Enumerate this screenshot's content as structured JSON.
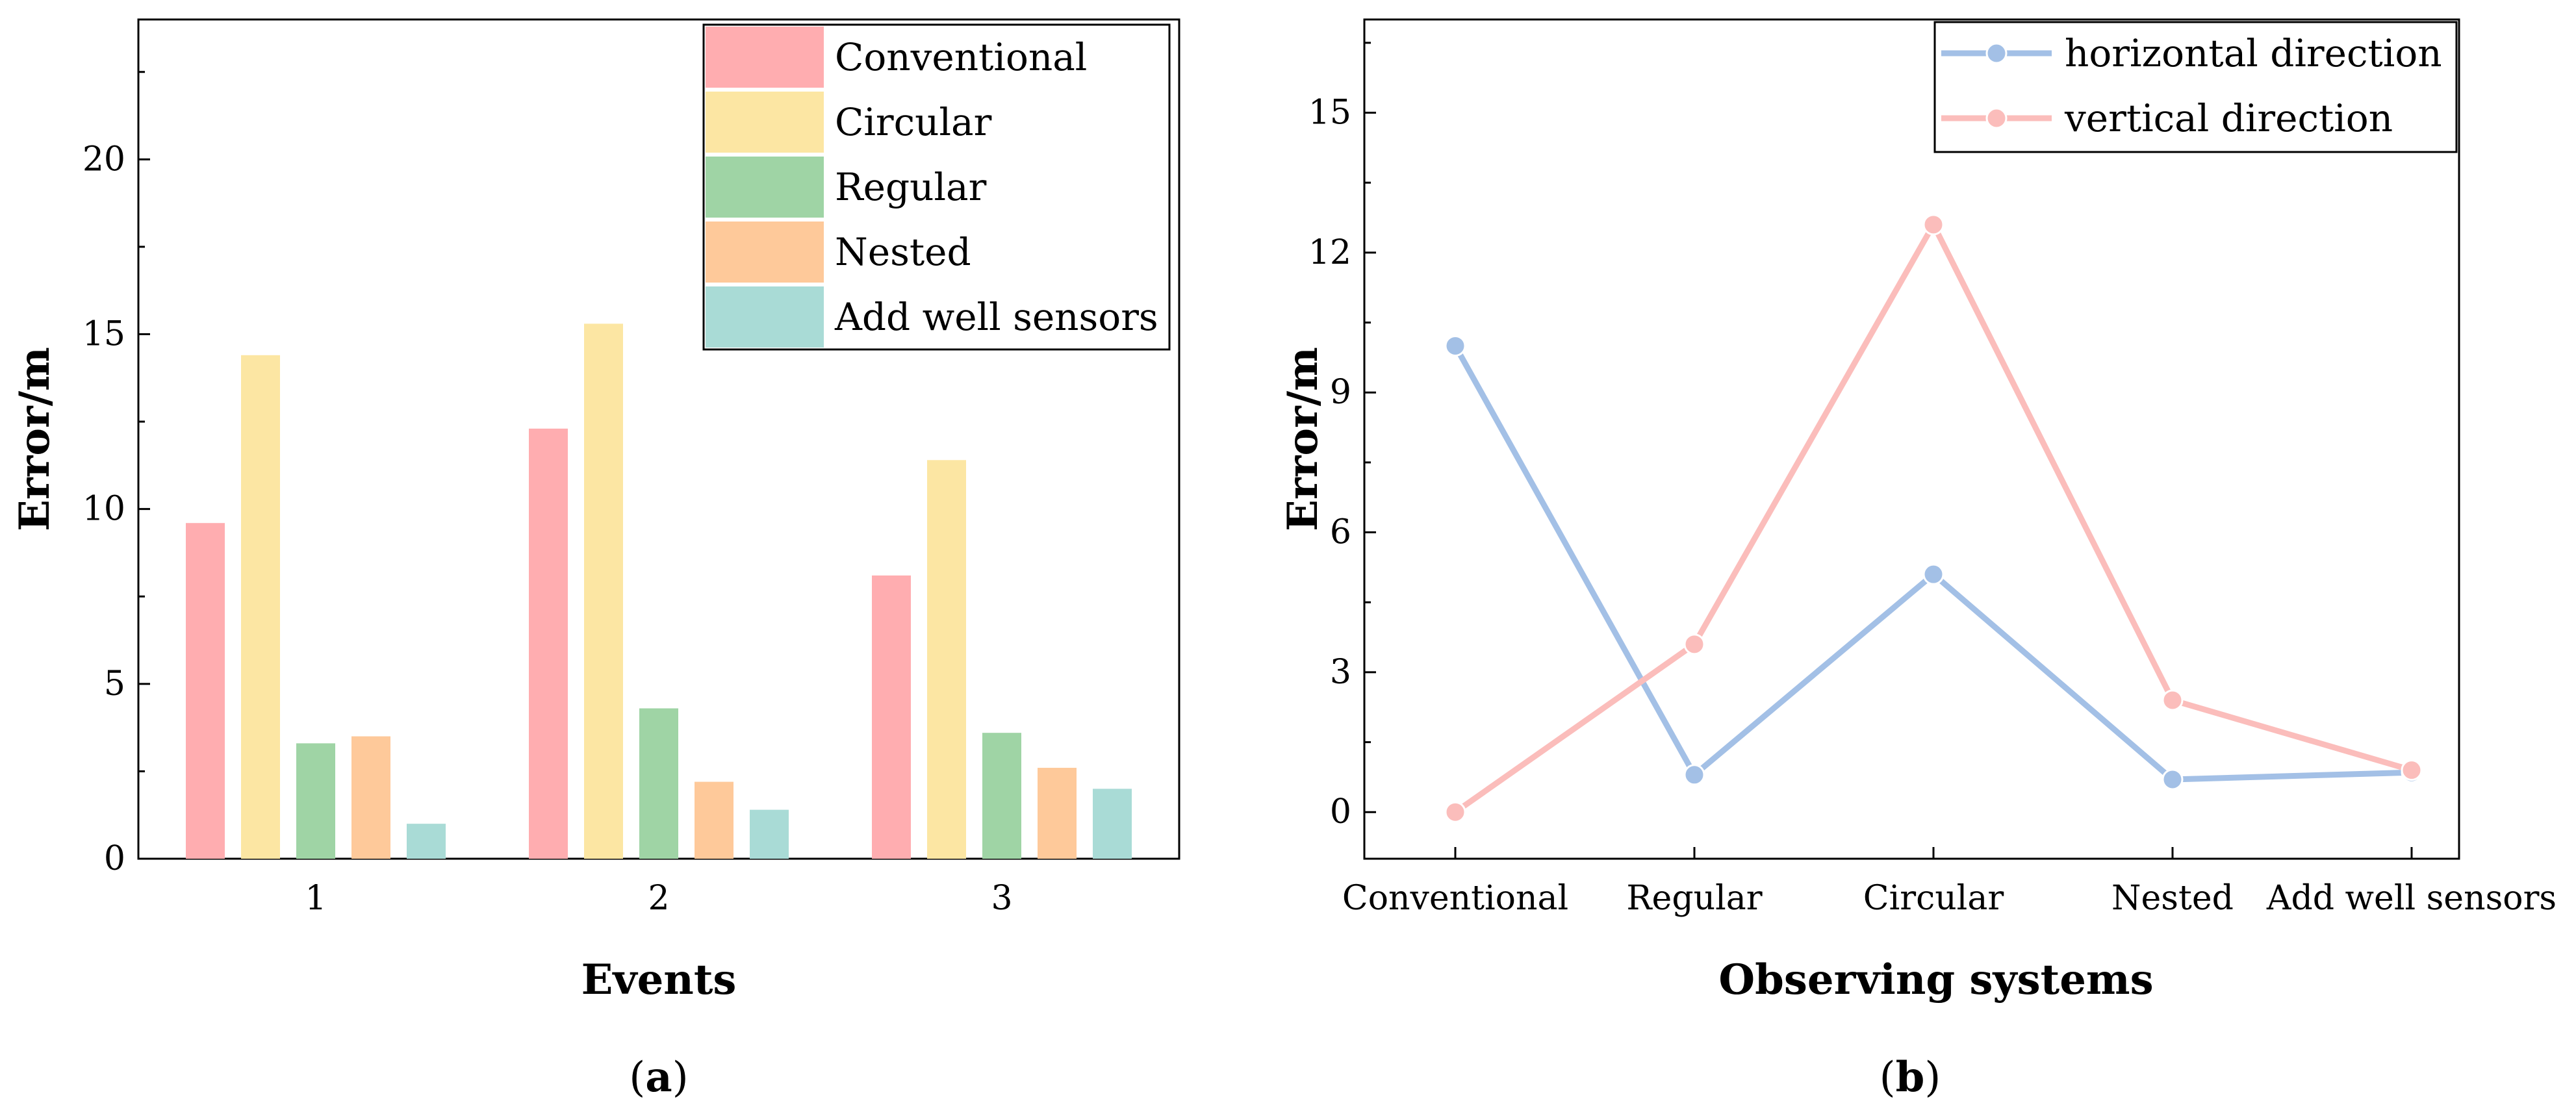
{
  "chart_data": [
    {
      "id": "a",
      "type": "bar",
      "panel_label": {
        "open": "(",
        "letter": "a",
        "close": ")"
      },
      "xlabel": "Events",
      "ylabel": "Error/m",
      "categories": [
        "1",
        "2",
        "3"
      ],
      "ylim": [
        0,
        24
      ],
      "yticks": [
        "0",
        "5",
        "10",
        "15",
        "20"
      ],
      "legend_position": "top-right",
      "series": [
        {
          "name": "Conventional",
          "color": "#FFADB0",
          "values": [
            9.6,
            12.3,
            8.1
          ]
        },
        {
          "name": "Circular",
          "color": "#FCE6A3",
          "values": [
            14.4,
            15.3,
            11.4
          ]
        },
        {
          "name": "Regular",
          "color": "#9FD4A5",
          "values": [
            3.3,
            4.3,
            3.6
          ]
        },
        {
          "name": "Nested",
          "color": "#FEC99A",
          "values": [
            3.5,
            2.2,
            2.6
          ]
        },
        {
          "name": "Add well sensors",
          "color": "#A9DBD6",
          "values": [
            1.0,
            1.4,
            2.0
          ]
        }
      ]
    },
    {
      "id": "b",
      "type": "line",
      "panel_label": {
        "open": "(",
        "letter": "b",
        "close": ")"
      },
      "xlabel": "Observing systems",
      "ylabel": "Error/m",
      "categories": [
        "Conventional",
        "Regular",
        "Circular",
        "Nested",
        "Add well sensors"
      ],
      "ylim": [
        -1,
        17
      ],
      "yticks": [
        "0",
        "3",
        "6",
        "9",
        "12",
        "15"
      ],
      "legend_position": "top-right",
      "series": [
        {
          "name": "horizontal direction",
          "color": "#A3C0E6",
          "values": [
            10.0,
            0.8,
            5.1,
            0.7,
            0.85
          ]
        },
        {
          "name": "vertical direction",
          "color": "#FBBDBB",
          "values": [
            0.0,
            3.6,
            12.6,
            2.4,
            0.9
          ]
        }
      ]
    }
  ]
}
